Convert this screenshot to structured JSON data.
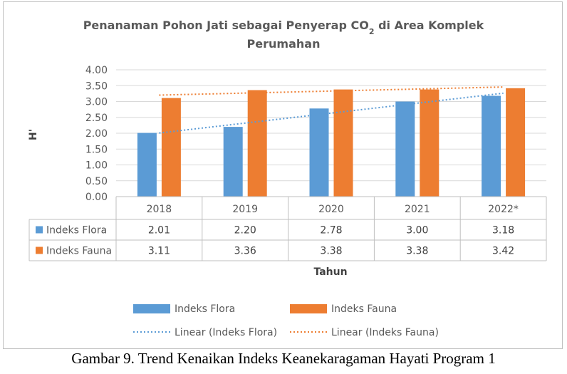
{
  "chart_data": {
    "type": "bar",
    "title_line1_prefix": "Penanaman Pohon Jati sebagai Penyerap CO",
    "title_subscript": "2",
    "title_line1_suffix": " di Area Komplek",
    "title_line2": "Perumahan",
    "ylabel": "H'",
    "xlabel": "Tahun",
    "ylim": [
      0,
      4
    ],
    "yticks": [
      "0.00",
      "0.50",
      "1.00",
      "1.50",
      "2.00",
      "2.50",
      "3.00",
      "3.50",
      "4.00"
    ],
    "categories": [
      "2018",
      "2019",
      "2020",
      "2021",
      "2022*"
    ],
    "grid": true,
    "legend_position": "bottom",
    "series": [
      {
        "name": "Indeks Flora",
        "color": "#5b9bd5",
        "values": [
          2.01,
          2.2,
          2.78,
          3.0,
          3.18
        ],
        "labels": [
          "2.01",
          "2.20",
          "2.78",
          "3.00",
          "3.18"
        ]
      },
      {
        "name": "Indeks Fauna",
        "color": "#ed7d31",
        "values": [
          3.11,
          3.36,
          3.38,
          3.38,
          3.42
        ],
        "labels": [
          "3.11",
          "3.36",
          "3.38",
          "3.38",
          "3.42"
        ]
      }
    ],
    "trendlines": [
      {
        "name": "Linear (Indeks Flora)",
        "series": 0,
        "color": "#5b9bd5"
      },
      {
        "name": "Linear (Indeks Fauna)",
        "series": 1,
        "color": "#ed7d31"
      }
    ]
  },
  "caption": "Gambar 9. Trend Kenaikan Indeks Keanekaragaman Hayati Program 1"
}
